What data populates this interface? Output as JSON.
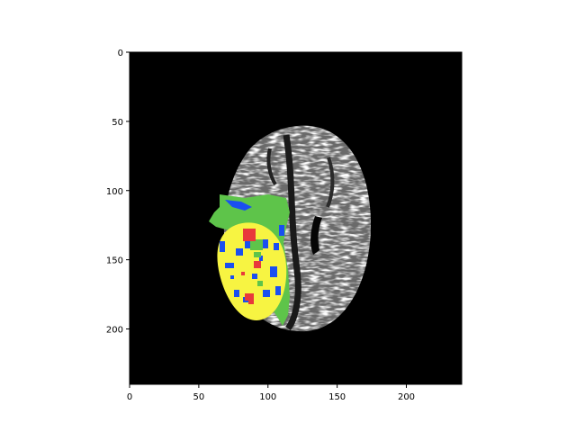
{
  "figure": {
    "image_extent": {
      "x": [
        0,
        240
      ],
      "y": [
        0,
        240
      ]
    },
    "x_ticks": [
      0,
      50,
      100,
      150,
      200
    ],
    "y_ticks": [
      0,
      50,
      100,
      150,
      200
    ],
    "x_tick_labels": [
      "0",
      "50",
      "100",
      "150",
      "200"
    ],
    "y_tick_labels": [
      "0",
      "50",
      "100",
      "150",
      "200"
    ],
    "background_color": "#000000",
    "segmentation_colors": {
      "edema": "#5ec44a",
      "tumor_core": "#f7f442",
      "enhancing": "#1a4ff0",
      "necrosis": "#e8393b"
    }
  }
}
